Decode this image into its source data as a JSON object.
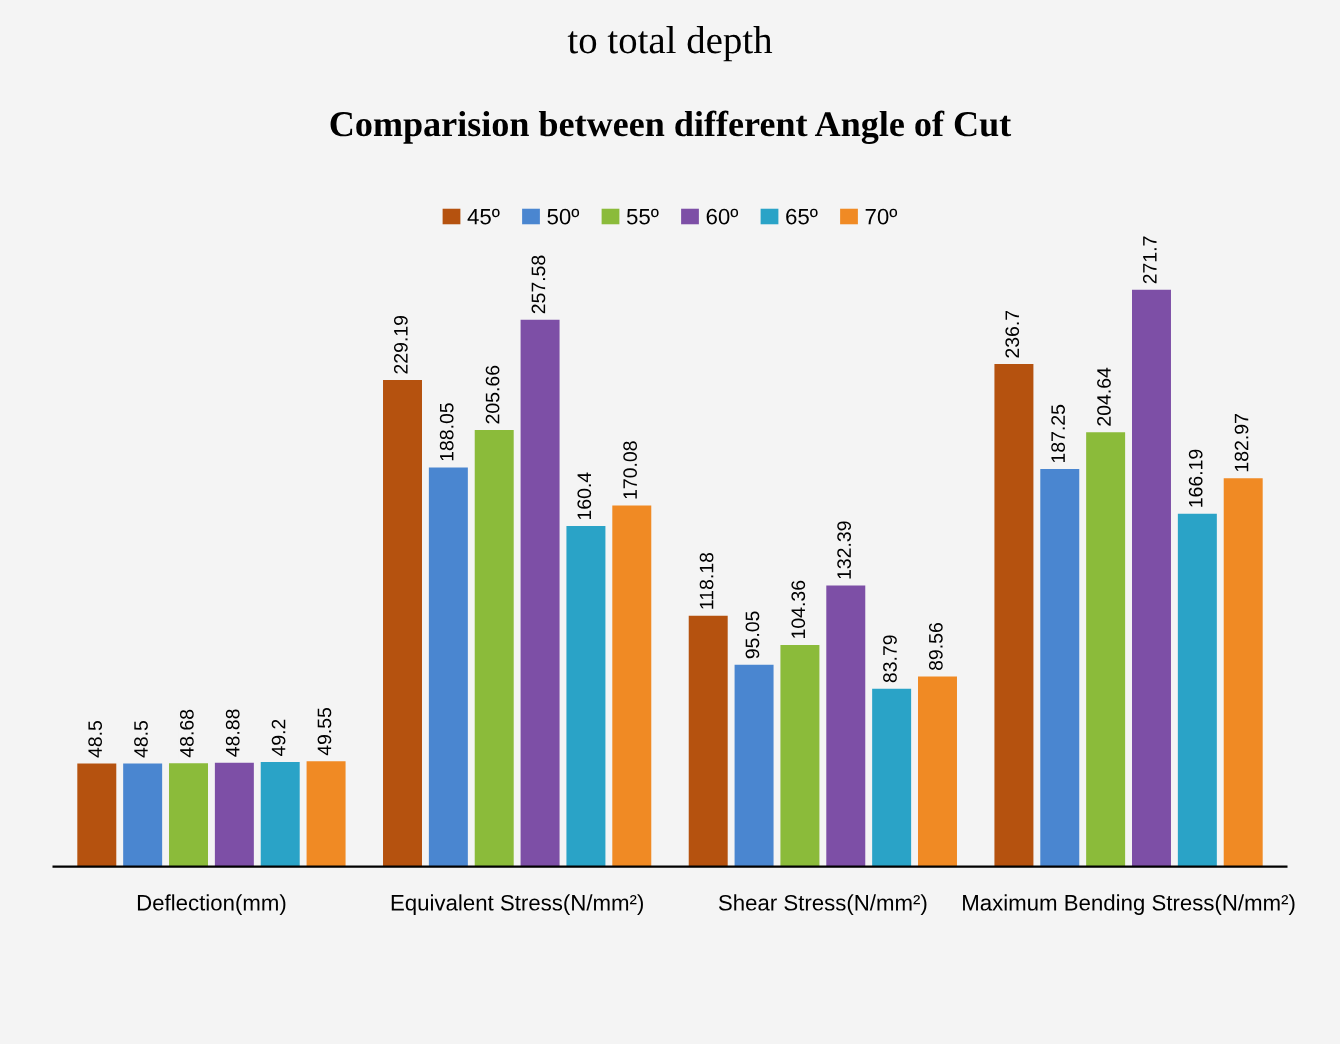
{
  "chart_data": {
    "type": "bar",
    "title": "Comparision between different Angle of Cut",
    "annotations": [
      "to total depth"
    ],
    "categories": [
      "Deflection(mm)",
      "Equivalent Stress(N/mm²)",
      "Shear Stress(N/mm²)",
      "Maximum Bending Stress(N/mm²)"
    ],
    "series": [
      {
        "name": "45º",
        "color": "#b5520f",
        "values": [
          48.5,
          229.19,
          118.18,
          236.7
        ]
      },
      {
        "name": "50º",
        "color": "#4a86d0",
        "values": [
          48.5,
          188.05,
          95.05,
          187.25
        ]
      },
      {
        "name": "55º",
        "color": "#8bbb3a",
        "values": [
          48.68,
          205.66,
          104.36,
          204.64
        ]
      },
      {
        "name": "60º",
        "color": "#7d4fa6",
        "values": [
          48.88,
          257.58,
          132.39,
          271.7
        ]
      },
      {
        "name": "65º",
        "color": "#2aa3c7",
        "values": [
          49.2,
          160.4,
          83.79,
          166.19
        ]
      },
      {
        "name": "70º",
        "color": "#f08a24",
        "values": [
          49.55,
          170.08,
          89.56,
          182.97
        ]
      }
    ],
    "data_labels": true,
    "legend": "top",
    "grid": false
  }
}
